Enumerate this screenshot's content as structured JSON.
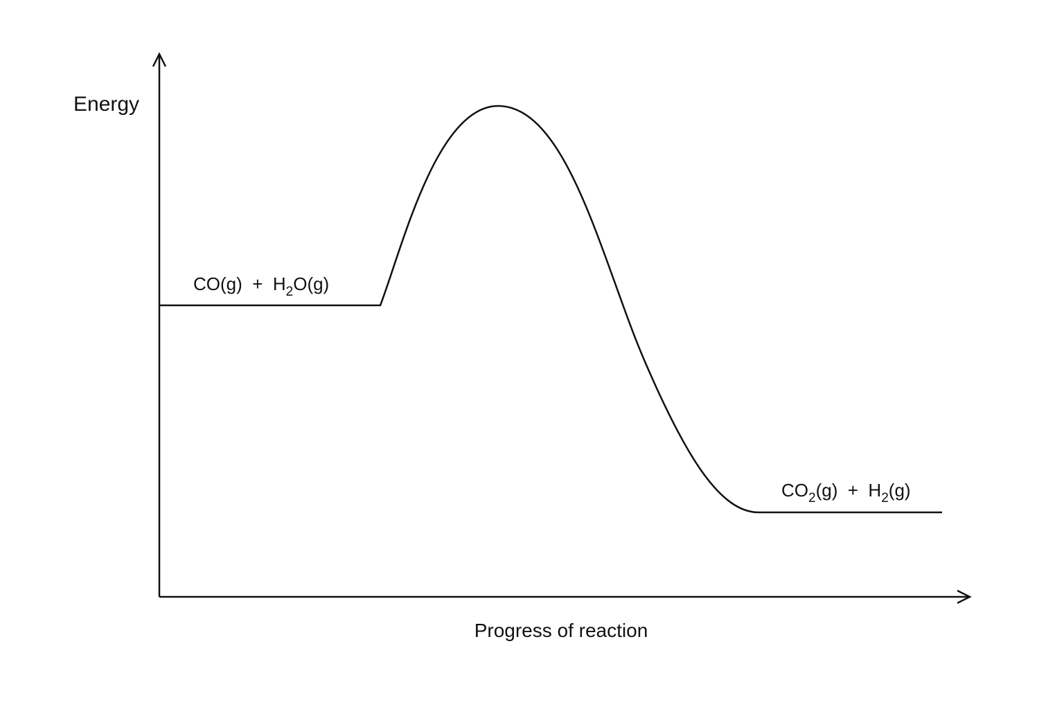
{
  "axes": {
    "y_label": "Energy",
    "x_label": "Progress of reaction"
  },
  "reactants": [
    "CO(g)  +  H",
    "2",
    "O(g)"
  ],
  "products": [
    "CO",
    "2",
    "(g)  +  H",
    "2",
    "(g)"
  ]
}
